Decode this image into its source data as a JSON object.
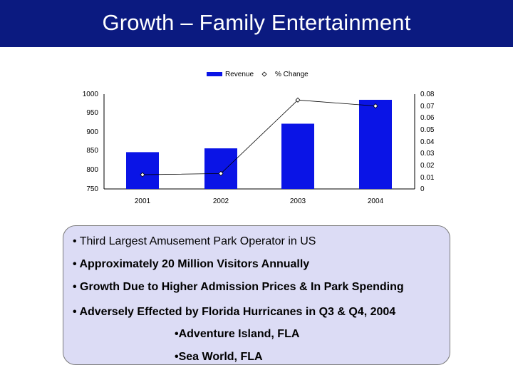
{
  "header": {
    "title": "Growth – Family Entertainment"
  },
  "colors": {
    "title_bg": "#0b1a80",
    "bar": "#0a14e6",
    "box_bg": "#dcdcf5"
  },
  "chart_data": {
    "type": "bar",
    "title": "",
    "categories": [
      "2001",
      "2002",
      "2003",
      "2004"
    ],
    "series": [
      {
        "name": "Revenue",
        "type": "bar",
        "axis": "left",
        "values": [
          847,
          857,
          922,
          985
        ]
      },
      {
        "name": "% Change",
        "type": "line",
        "axis": "right",
        "values": [
          0.012,
          0.013,
          0.075,
          0.07
        ]
      }
    ],
    "left_axis": {
      "ylim": [
        750,
        1000
      ],
      "ticks": [
        "1000",
        "950",
        "900",
        "850",
        "800",
        "750"
      ]
    },
    "right_axis": {
      "ylim": [
        0,
        0.08
      ],
      "ticks": [
        "0.08",
        "0.07",
        "0.06",
        "0.05",
        "0.04",
        "0.03",
        "0.02",
        "0.01",
        "0"
      ]
    },
    "legend": [
      "Revenue",
      "% Change"
    ],
    "legend_position": "top-center",
    "grid": false,
    "xlabel": "",
    "ylabel": ""
  },
  "bullets": {
    "b1": "• Third Largest Amusement Park Operator in US",
    "b2": "• Approximately 20 Million Visitors Annually",
    "b3": "• Growth Due to Higher Admission Prices & In Park Spending",
    "b4": "• Adversely Effected by Florida Hurricanes in Q3 & Q4, 2004",
    "sub1": "•Adventure Island, FLA",
    "sub2": "•Sea World, FLA"
  }
}
